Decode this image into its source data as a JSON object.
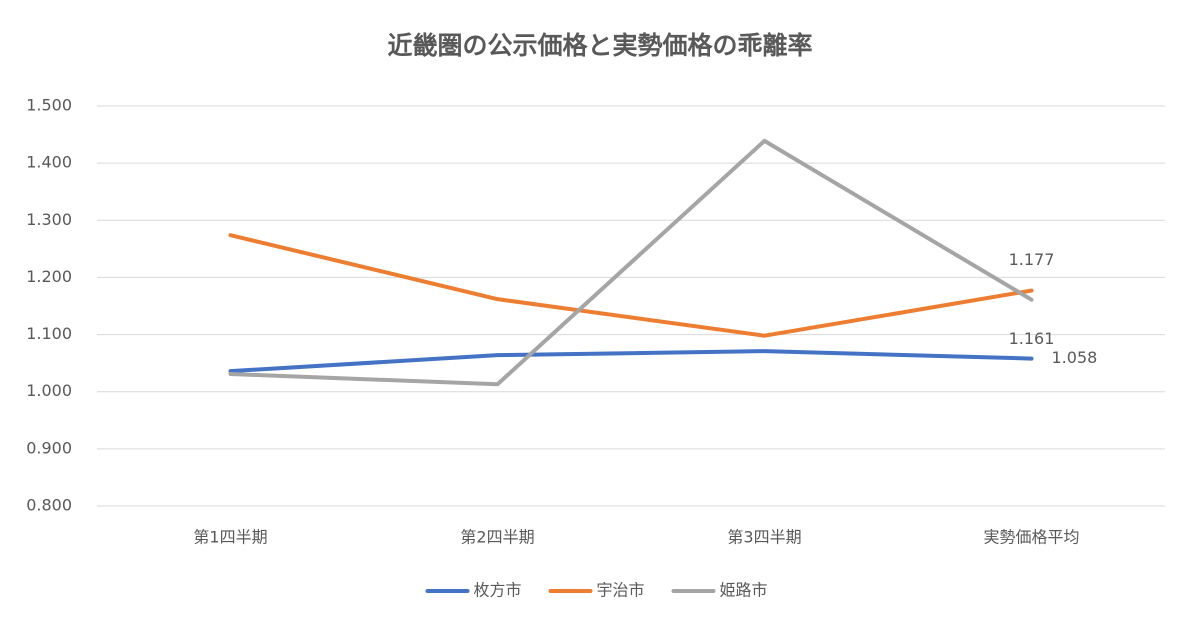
{
  "chart_data": {
    "type": "line",
    "title": "近畿圏の公示価格と実勢価格の乖離率",
    "categories": [
      "第1四半期",
      "第2四半期",
      "第3四半期",
      "実勢価格平均"
    ],
    "series": [
      {
        "name": "枚方市",
        "color": "#4472c4",
        "values": [
          1.036,
          1.064,
          1.071,
          1.058
        ],
        "value_labels": [
          null,
          null,
          null,
          "1.058"
        ]
      },
      {
        "name": "宇治市",
        "color": "#ed7d31",
        "values": [
          1.274,
          1.162,
          1.098,
          1.177
        ],
        "value_labels": [
          null,
          null,
          null,
          "1.177"
        ]
      },
      {
        "name": "姫路市",
        "color": "#a5a5a5",
        "values": [
          1.031,
          1.013,
          1.439,
          1.161
        ],
        "value_labels": [
          null,
          null,
          null,
          "1.161"
        ]
      }
    ],
    "ylim": [
      0.8,
      1.5
    ],
    "yticks": [
      {
        "value": 0.8,
        "label": "0.800"
      },
      {
        "value": 0.9,
        "label": "0.900"
      },
      {
        "value": 1.0,
        "label": "1.000"
      },
      {
        "value": 1.1,
        "label": "1.100"
      },
      {
        "value": 1.2,
        "label": "1.200"
      },
      {
        "value": 1.3,
        "label": "1.300"
      },
      {
        "value": 1.4,
        "label": "1.400"
      },
      {
        "value": 1.5,
        "label": "1.500"
      }
    ],
    "grid": true,
    "legend": "bottom"
  }
}
